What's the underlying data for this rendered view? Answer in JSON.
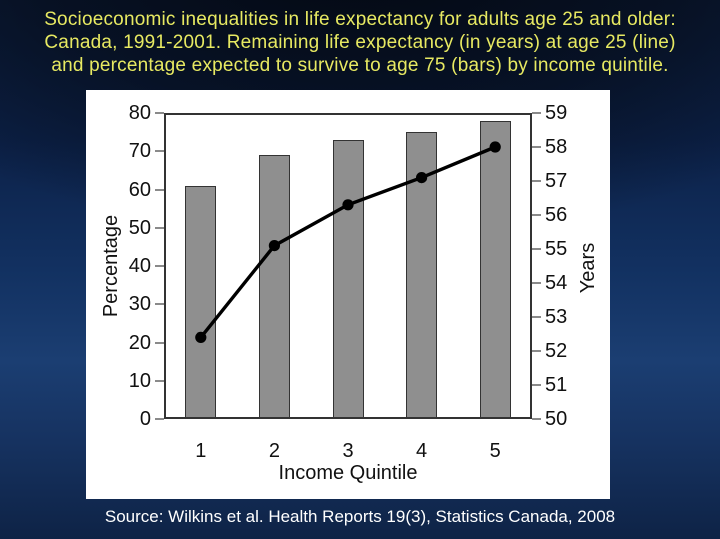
{
  "slide": {
    "title_lines": [
      "Socioeconomic inequalities in life expectancy for adults age 25 and older:",
      "Canada, 1991-2001. Remaining life expectancy (in years) at age 25 (line)",
      "and percentage expected to survive to age 75 (bars) by income quintile."
    ],
    "source": "Source: Wilkins et al. Health Reports 19(3), Statistics Canada, 2008",
    "colors": {
      "title_text": "#e7e962",
      "source_text": "#ffffff",
      "panel_background": "#ffffff",
      "bar_fill": "#8f8f8f",
      "bar_border": "#333333",
      "line": "#000000",
      "axis_text": "#111111",
      "tick_mark": "#8a8a8a",
      "background_dark": "#050a14",
      "background_light": "#1b3e72"
    }
  },
  "chart_data": {
    "type": "bar",
    "categories": [
      "1",
      "2",
      "3",
      "4",
      "5"
    ],
    "series": [
      {
        "name": "Percentage expected to survive to age 75 (bars)",
        "type": "bar",
        "axis": "left",
        "values": [
          61,
          69,
          73,
          75,
          78
        ]
      },
      {
        "name": "Remaining life expectancy at age 25 (line)",
        "type": "line",
        "axis": "right",
        "values": [
          52.4,
          55.1,
          56.3,
          57.1,
          58.0
        ]
      }
    ],
    "title": "",
    "xlabel": "Income Quintile",
    "left_axis": {
      "label": "Percentage",
      "min": 0,
      "max": 80,
      "ticks": [
        0,
        10,
        20,
        30,
        40,
        50,
        60,
        70,
        80
      ]
    },
    "right_axis": {
      "label": "Years",
      "min": 50,
      "max": 59,
      "ticks": [
        50,
        51,
        52,
        53,
        54,
        55,
        56,
        57,
        58,
        59
      ]
    },
    "grid": false,
    "legend": false
  }
}
